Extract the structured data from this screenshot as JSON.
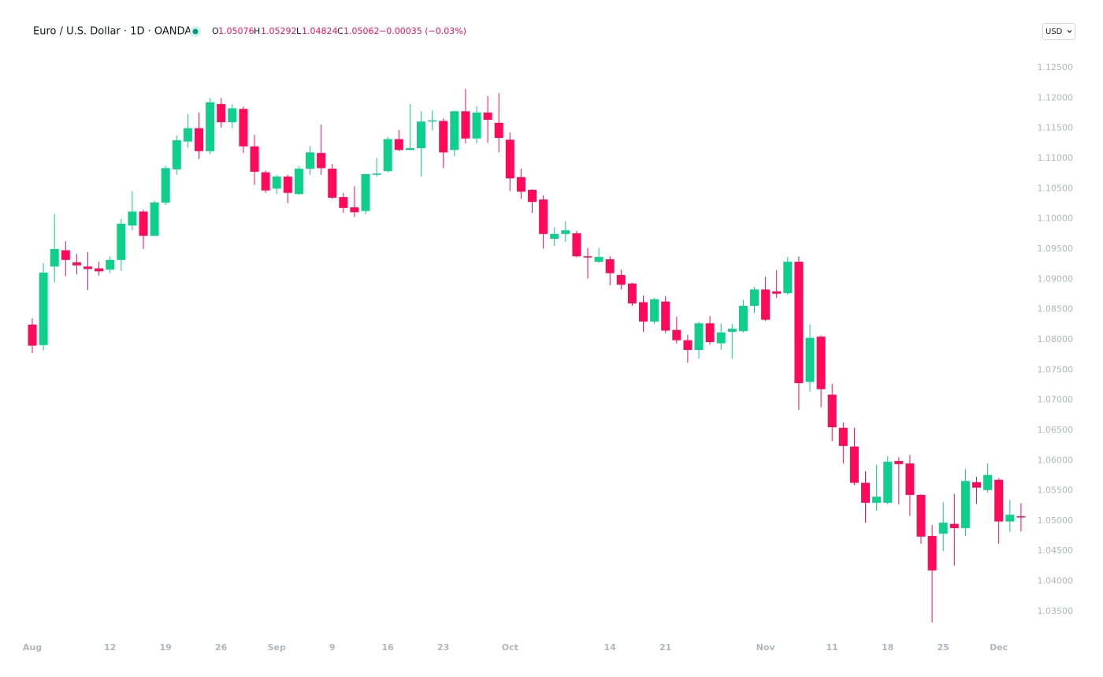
{
  "header": {
    "symbol": "Euro / U.S. Dollar · 1D · OANDA",
    "ohlc": [
      {
        "letter": "O",
        "value": "1.05076"
      },
      {
        "letter": "H",
        "value": "1.05292"
      },
      {
        "letter": "L",
        "value": "1.04824"
      },
      {
        "letter": "C",
        "value": "1.05062"
      }
    ],
    "change": "−0.00035 (−0.03%)",
    "currency": "USD"
  },
  "chart_data": {
    "type": "candlestick",
    "categories": [
      "Aug",
      null,
      null,
      null,
      null,
      null,
      null,
      "12",
      null,
      null,
      null,
      null,
      "19",
      null,
      null,
      null,
      null,
      "26",
      null,
      null,
      null,
      null,
      "Sep",
      null,
      null,
      null,
      null,
      "9",
      null,
      null,
      null,
      null,
      "16",
      null,
      null,
      null,
      null,
      "23",
      null,
      null,
      null,
      null,
      null,
      "Oct",
      null,
      null,
      null,
      null,
      null,
      null,
      null,
      null,
      "14",
      null,
      null,
      null,
      null,
      "21",
      null,
      null,
      null,
      null,
      null,
      null,
      null,
      null,
      "Nov",
      null,
      null,
      null,
      null,
      null,
      "11",
      null,
      null,
      null,
      null,
      "18",
      null,
      null,
      null,
      null,
      "25",
      null,
      null,
      null,
      null,
      "Dec",
      null,
      null
    ],
    "open": [
      1.0825,
      1.0791,
      1.0921,
      1.0948,
      1.0928,
      1.0921,
      1.0918,
      1.0916,
      1.0932,
      1.0989,
      1.1012,
      1.0972,
      1.1027,
      1.1082,
      1.1128,
      1.115,
      1.1112,
      1.119,
      1.116,
      1.1182,
      1.112,
      1.1077,
      1.105,
      1.107,
      1.1041,
      1.1083,
      1.1109,
      1.1083,
      1.1036,
      1.1019,
      1.1013,
      1.1073,
      1.1079,
      1.1132,
      1.1114,
      1.1117,
      1.1161,
      1.1162,
      1.1114,
      1.1178,
      1.1133,
      1.1176,
      1.1159,
      1.1131,
      1.1069,
      1.1048,
      1.1032,
      1.0967,
      1.0975,
      1.0976,
      1.0938,
      1.0929,
      1.0933,
      1.0907,
      1.0893,
      1.0862,
      1.083,
      1.0863,
      1.0816,
      1.0799,
      1.0783,
      1.0827,
      1.0794,
      1.0813,
      1.0814,
      1.0856,
      1.0883,
      1.088,
      1.0877,
      1.0929,
      1.073,
      1.0805,
      1.0709,
      1.0654,
      1.0623,
      1.0563,
      1.053,
      1.053,
      1.0599,
      1.0595,
      1.0543,
      1.0475,
      1.0479,
      1.0495,
      1.0488,
      1.0564,
      1.0551,
      1.0568,
      1.0499,
      1.05076
    ],
    "high": [
      1.0835,
      1.0927,
      1.1008,
      1.0963,
      1.0942,
      1.0945,
      1.0929,
      1.0938,
      1.1,
      1.1046,
      1.1015,
      1.103,
      1.1088,
      1.1138,
      1.1173,
      1.1176,
      1.12,
      1.12,
      1.119,
      1.1186,
      1.1139,
      1.108,
      1.1073,
      1.1073,
      1.1087,
      1.112,
      1.1156,
      1.1091,
      1.1043,
      1.1054,
      1.1074,
      1.1101,
      1.1136,
      1.1147,
      1.119,
      1.1178,
      1.1179,
      1.1166,
      1.1179,
      1.1215,
      1.1186,
      1.1203,
      1.1208,
      1.1143,
      1.1083,
      1.1049,
      1.1039,
      1.0986,
      1.0996,
      1.098,
      1.0952,
      1.0952,
      1.0938,
      1.0916,
      1.0894,
      1.0873,
      1.0869,
      1.0872,
      1.0838,
      1.0808,
      1.083,
      1.0839,
      1.0827,
      1.0826,
      1.0866,
      1.0887,
      1.0904,
      1.0915,
      1.0937,
      1.0938,
      1.0825,
      1.0807,
      1.0727,
      1.0663,
      1.0654,
      1.0582,
      1.0593,
      1.0607,
      1.0605,
      1.0609,
      1.0544,
      1.0493,
      1.0531,
      1.0545,
      1.0586,
      1.0573,
      1.0595,
      1.0571,
      1.0535,
      1.05292
    ],
    "low": [
      1.0778,
      1.0782,
      1.0895,
      1.0905,
      1.0908,
      1.0882,
      1.0906,
      1.091,
      1.0914,
      1.0981,
      1.095,
      1.0971,
      1.1023,
      1.1073,
      1.1118,
      1.1099,
      1.1107,
      1.1151,
      1.115,
      1.1109,
      1.1056,
      1.1043,
      1.1041,
      1.1026,
      1.104,
      1.1073,
      1.1073,
      1.1033,
      1.101,
      1.1003,
      1.1007,
      1.107,
      1.1077,
      1.1112,
      1.1114,
      1.107,
      1.1147,
      1.1084,
      1.1104,
      1.1125,
      1.1125,
      1.1126,
      1.111,
      1.1046,
      1.1033,
      1.101,
      1.0951,
      1.0955,
      1.0962,
      1.0936,
      1.0901,
      1.0927,
      1.089,
      1.0883,
      1.0856,
      1.0813,
      1.0826,
      1.0811,
      1.0794,
      1.0762,
      1.0769,
      1.0792,
      1.0783,
      1.0769,
      1.0812,
      1.0844,
      1.0831,
      1.0869,
      1.0874,
      1.0684,
      1.0714,
      1.0688,
      1.0632,
      1.0595,
      1.0559,
      1.0497,
      1.0517,
      1.0527,
      1.0527,
      1.0508,
      1.0462,
      1.0332,
      1.045,
      1.0426,
      1.0475,
      1.0528,
      1.0547,
      1.0462,
      1.0482,
      1.04824
    ],
    "close": [
      1.079,
      1.0911,
      1.095,
      1.0932,
      1.0923,
      1.0917,
      1.0913,
      1.0932,
      1.0992,
      1.1012,
      1.0972,
      1.1027,
      1.1084,
      1.113,
      1.115,
      1.1112,
      1.1193,
      1.116,
      1.1183,
      1.112,
      1.1078,
      1.1047,
      1.107,
      1.1043,
      1.1083,
      1.111,
      1.1084,
      1.1035,
      1.1018,
      1.1011,
      1.1074,
      1.1075,
      1.1132,
      1.1114,
      1.1117,
      1.1161,
      1.1163,
      1.111,
      1.1178,
      1.1133,
      1.1176,
      1.1164,
      1.1134,
      1.1067,
      1.1045,
      1.1028,
      1.0975,
      1.0975,
      1.0981,
      1.0938,
      1.0936,
      1.0937,
      1.091,
      1.0891,
      1.086,
      1.083,
      1.0867,
      1.0815,
      1.0799,
      1.0783,
      1.0827,
      1.0796,
      1.0812,
      1.0818,
      1.0856,
      1.0883,
      1.0833,
      1.0876,
      1.0929,
      1.0728,
      1.0803,
      1.0718,
      1.0655,
      1.0624,
      1.0563,
      1.053,
      1.054,
      1.0598,
      1.0594,
      1.0543,
      1.0474,
      1.0418,
      1.0497,
      1.0488,
      1.0566,
      1.0555,
      1.0576,
      1.0499,
      1.051,
      1.05062
    ],
    "up_color": "#0ecf8c",
    "down_color": "#ff0a5a",
    "ylim": [
      1.0312,
      1.1284
    ],
    "yticks": [
      {
        "value": 1.035,
        "label": "1.03500"
      },
      {
        "value": 1.04,
        "label": "1.04000"
      },
      {
        "value": 1.045,
        "label": "1.04500"
      },
      {
        "value": 1.05,
        "label": "1.05000"
      },
      {
        "value": 1.055,
        "label": "1.05500"
      },
      {
        "value": 1.06,
        "label": "1.06000"
      },
      {
        "value": 1.065,
        "label": "1.06500"
      },
      {
        "value": 1.07,
        "label": "1.07000"
      },
      {
        "value": 1.075,
        "label": "1.07500"
      },
      {
        "value": 1.08,
        "label": "1.08000"
      },
      {
        "value": 1.085,
        "label": "1.08500"
      },
      {
        "value": 1.09,
        "label": "1.09000"
      },
      {
        "value": 1.095,
        "label": "1.09500"
      },
      {
        "value": 1.1,
        "label": "1.10000"
      },
      {
        "value": 1.105,
        "label": "1.10500"
      },
      {
        "value": 1.11,
        "label": "1.11000"
      },
      {
        "value": 1.115,
        "label": "1.11500"
      },
      {
        "value": 1.12,
        "label": "1.12000"
      },
      {
        "value": 1.125,
        "label": "1.12500"
      }
    ],
    "grid": false
  }
}
